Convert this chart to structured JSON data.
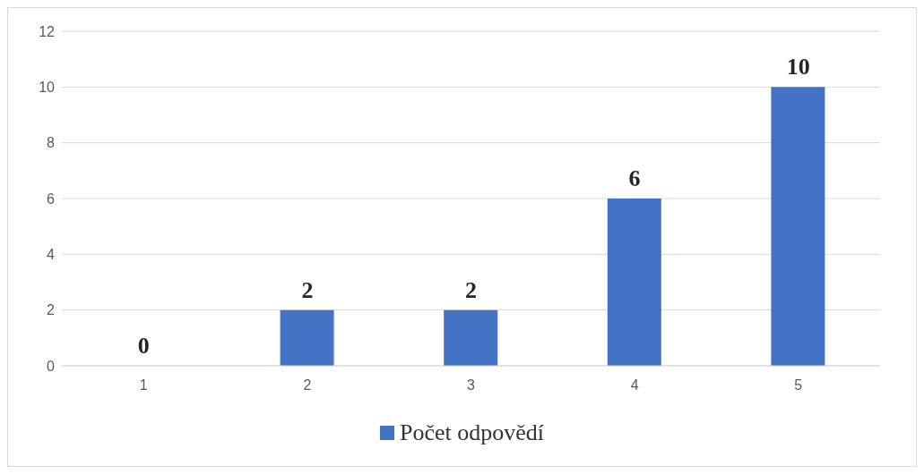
{
  "chart_data": {
    "type": "bar",
    "categories": [
      "1",
      "2",
      "3",
      "4",
      "5"
    ],
    "series": [
      {
        "name": "Počet odpovědí",
        "color": "#4472c4",
        "values": [
          0,
          2,
          2,
          6,
          10
        ]
      }
    ],
    "ylim": [
      0,
      12
    ],
    "yticks": [
      0,
      2,
      4,
      6,
      8,
      10,
      12
    ],
    "grid": "y",
    "data_labels": true,
    "legend": "bottom"
  }
}
